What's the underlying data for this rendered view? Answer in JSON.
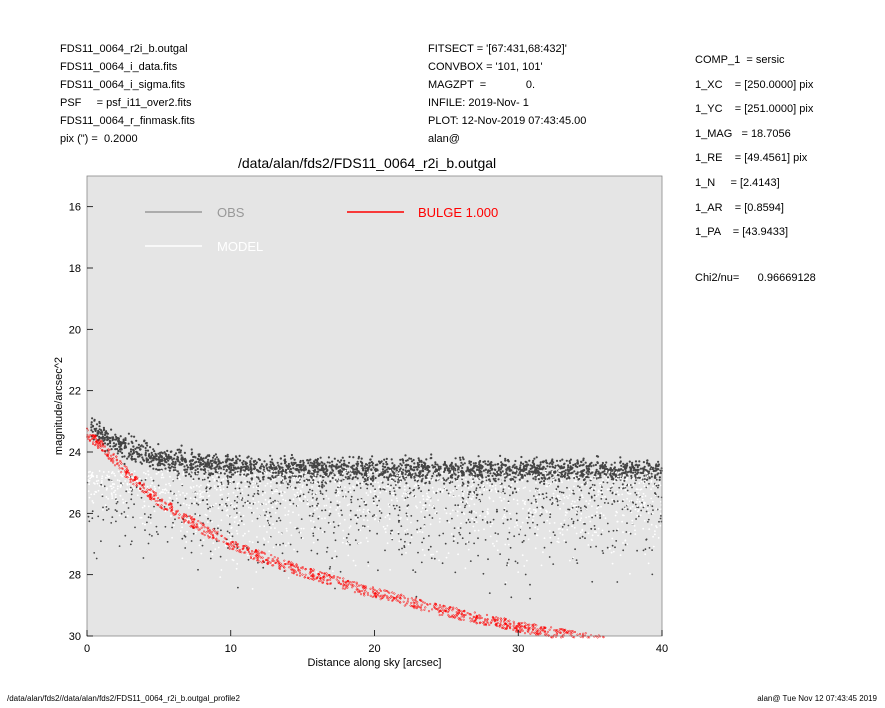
{
  "header_left": [
    "FDS11_0064_r2i_b.outgal",
    "FDS11_0064_i_data.fits",
    "FDS11_0064_i_sigma.fits",
    "PSF     = psf_i11_over2.fits",
    "FDS11_0064_r_finmask.fits",
    "pix (\") =  0.2000"
  ],
  "header_mid": [
    "FITSECT = '[67:431,68:432]'",
    "CONVBOX = '101, 101'",
    "MAGZPT  =             0.",
    "INFILE: 2019-Nov- 1",
    "PLOT: 12-Nov-2019 07:43:45.00",
    "alan@"
  ],
  "header_right": [
    "COMP_1  = sersic",
    "1_XC    = [250.0000] pix",
    "1_YC    = [251.0000] pix",
    "1_MAG   = 18.7056",
    "1_RE    = [49.4561] pix",
    "1_N     = [2.4143]",
    "1_AR    = [0.8594]",
    "1_PA    = [43.9433]"
  ],
  "chi2_text": "Chi2/nu=      0.96669128",
  "footer_left": "/data/alan/fds2//data/alan/fds2/FDS11_0064_r2i_b.outgal_profile2",
  "footer_right": "alan@  Tue Nov 12 07:43:45 2019",
  "colors": {
    "plot_bg": "#e5e5e5",
    "obs": "#444444",
    "model": "#ffffff",
    "bulge": "#ff0000"
  },
  "chart_data": {
    "type": "scatter",
    "title": "/data/alan/fds2/FDS11_0064_r2i_b.outgal",
    "xlabel": "Distance along sky [arcsec]",
    "ylabel": "magnitude/arcsec^2",
    "xlim": [
      0,
      40
    ],
    "ylim": [
      30,
      15
    ],
    "y_inverted": true,
    "xticks": [
      0,
      10,
      20,
      30,
      40
    ],
    "yticks": [
      16,
      18,
      20,
      22,
      24,
      26,
      28,
      30
    ],
    "legend": [
      {
        "name": "OBS",
        "color": "#999999"
      },
      {
        "name": "MODEL",
        "color": "#ffffff"
      },
      {
        "name": "BULGE  1.000",
        "color": "#ff0000"
      }
    ],
    "series": [
      {
        "name": "OBS",
        "x": [
          0.5,
          2,
          4,
          6,
          8,
          10,
          15,
          20,
          25,
          30,
          35,
          40
        ],
        "y": [
          23.3,
          23.7,
          24.1,
          24.3,
          24.4,
          24.5,
          24.6,
          24.6,
          24.6,
          24.6,
          24.6,
          24.6
        ]
      },
      {
        "name": "BULGE  1.000",
        "x": [
          0,
          1,
          2,
          3,
          4,
          5,
          6,
          8,
          10,
          12,
          15,
          20,
          25,
          30,
          35
        ],
        "y": [
          23.4,
          23.8,
          24.3,
          24.8,
          25.2,
          25.6,
          25.9,
          26.5,
          27.0,
          27.4,
          27.9,
          28.6,
          29.2,
          29.7,
          30.1
        ]
      }
    ]
  }
}
